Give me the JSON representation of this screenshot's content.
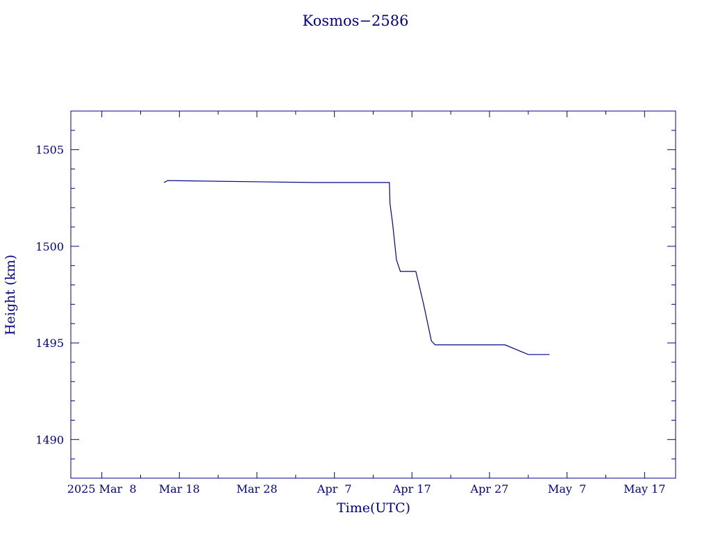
{
  "chart_data": {
    "type": "line",
    "title": "Kosmos−2586",
    "xlabel": "Time(UTC)",
    "ylabel": "Height (km)",
    "xlim": [
      "2025-03-04",
      "2025-05-21"
    ],
    "ylim": [
      1488,
      1507
    ],
    "grid": false,
    "legend": "none",
    "color": "#00008b",
    "x_ticks": [
      {
        "date": "2025-03-08",
        "label": "2025 Mar  8"
      },
      {
        "date": "2025-03-18",
        "label": "Mar 18"
      },
      {
        "date": "2025-03-28",
        "label": "Mar 28"
      },
      {
        "date": "2025-04-07",
        "label": "Apr  7"
      },
      {
        "date": "2025-04-17",
        "label": "Apr 17"
      },
      {
        "date": "2025-04-27",
        "label": "Apr 27"
      },
      {
        "date": "2025-05-07",
        "label": "May  7"
      },
      {
        "date": "2025-05-17",
        "label": "May 17"
      }
    ],
    "y_ticks": [
      {
        "value": 1490,
        "label": "1490"
      },
      {
        "value": 1495,
        "label": "1495"
      },
      {
        "value": 1500,
        "label": "1500"
      },
      {
        "value": 1505,
        "label": "1505"
      }
    ],
    "series": [
      {
        "x": [
          "2025-03-16 00:00",
          "2025-03-16 12:00",
          "2025-04-04 12:00",
          "2025-04-14 02:00",
          "2025-04-14 04:00",
          "2025-04-14 12:00",
          "2025-04-15 00:00",
          "2025-04-15 12:00",
          "2025-04-17 12:00",
          "2025-04-18 12:00",
          "2025-04-19 12:00",
          "2025-04-20 00:00",
          "2025-04-29 00:00",
          "2025-05-02 00:00",
          "2025-05-04 18:00"
        ],
        "y": [
          1503.3,
          1503.4,
          1503.3,
          1503.3,
          1502.2,
          1501.2,
          1499.3,
          1498.7,
          1498.7,
          1497.0,
          1495.1,
          1494.9,
          1494.9,
          1494.4,
          1494.4
        ]
      }
    ]
  }
}
